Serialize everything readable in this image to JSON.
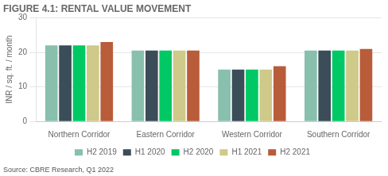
{
  "chart_data": {
    "type": "bar",
    "title": "FIGURE 4.1: RENTAL VALUE MOVEMENT",
    "ylabel": "INR / sq. ft. / month",
    "annotations": [
      "Source: CBRE Research, Q1 2022"
    ],
    "categories": [
      "Northern Corridor",
      "Eastern Corridor",
      "Western Corridor",
      "Southern Corridor"
    ],
    "series": [
      {
        "name": "H2 2019",
        "color": "#88bfad",
        "values": [
          22,
          20.5,
          15,
          20.5
        ]
      },
      {
        "name": "H1 2020",
        "color": "#3a4d58",
        "values": [
          22,
          20.5,
          15,
          20.5
        ]
      },
      {
        "name": "H2 2020",
        "color": "#00c864",
        "values": [
          22,
          20.5,
          15,
          20.5
        ]
      },
      {
        "name": "H1 2021",
        "color": "#cfc98a",
        "values": [
          22,
          20.5,
          15,
          20.5
        ]
      },
      {
        "name": "H2 2021",
        "color": "#b85c3a",
        "values": [
          23,
          20.5,
          16,
          21
        ]
      }
    ],
    "ylim": [
      0,
      30
    ],
    "yticks": [
      0,
      10,
      20,
      30
    ],
    "grid": true,
    "legend": "bottom"
  }
}
